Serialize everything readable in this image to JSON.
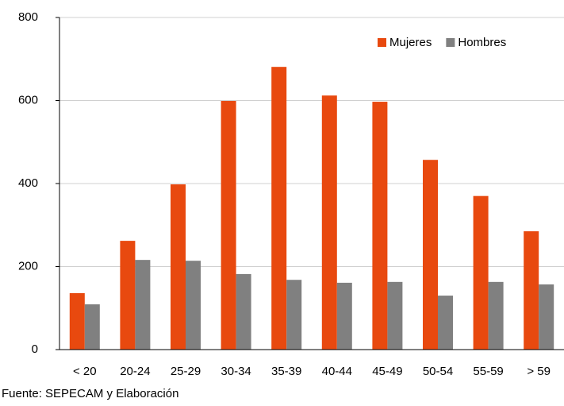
{
  "chart_data": {
    "type": "bar",
    "categories": [
      "< 20",
      "20-24",
      "25-29",
      "30-34",
      "35-39",
      "40-44",
      "45-49",
      "50-54",
      "55-59",
      "> 59"
    ],
    "series": [
      {
        "name": "Mujeres",
        "color": "#e8490f",
        "values": [
          136,
          262,
          398,
          599,
          681,
          612,
          597,
          457,
          370,
          285
        ]
      },
      {
        "name": "Hombres",
        "color": "#808080",
        "values": [
          109,
          216,
          214,
          182,
          168,
          161,
          163,
          130,
          163,
          157
        ]
      }
    ],
    "ylim": [
      0,
      800
    ],
    "yticks": [
      0,
      200,
      400,
      600,
      800
    ],
    "grid": true,
    "legend": "top-right",
    "source": "Fuente: SEPECAM y Elaboración"
  }
}
